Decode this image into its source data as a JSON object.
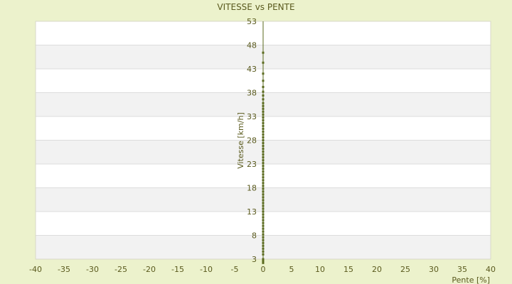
{
  "chart_data": {
    "type": "scatter",
    "title": "VITESSE vs PENTE",
    "xlabel": "Pente [%]",
    "ylabel": "Vitesse [km/h]",
    "xlim": [
      -40,
      40
    ],
    "ylim": [
      3,
      53
    ],
    "x_ticks": [
      -40,
      -35,
      -30,
      -25,
      -20,
      -15,
      -10,
      -5,
      0,
      5,
      10,
      15,
      20,
      25,
      30,
      35,
      40
    ],
    "y_ticks": [
      3,
      8,
      13,
      18,
      23,
      28,
      33,
      38,
      43,
      48,
      53
    ],
    "grid": "horizontal-bands",
    "legend": "none",
    "colors": {
      "background": "#ecf2cc",
      "plot_band_light": "#ffffff",
      "plot_band_dark": "#f2f2f2",
      "points": "#5a6a1e",
      "text": "#5a5a1e"
    },
    "points": [
      {
        "x": 0,
        "y": 2.2
      },
      {
        "x": 0,
        "y": 2.6
      },
      {
        "x": 0,
        "y": 3.0
      },
      {
        "x": 0,
        "y": 4.0
      },
      {
        "x": 0,
        "y": 4.6
      },
      {
        "x": 0,
        "y": 5.2
      },
      {
        "x": 0,
        "y": 5.8
      },
      {
        "x": 0,
        "y": 6.4
      },
      {
        "x": 0,
        "y": 7.0
      },
      {
        "x": 0,
        "y": 7.6
      },
      {
        "x": 0,
        "y": 8.2
      },
      {
        "x": 0,
        "y": 8.8
      },
      {
        "x": 0,
        "y": 9.4
      },
      {
        "x": 0,
        "y": 10.0
      },
      {
        "x": 0,
        "y": 10.6
      },
      {
        "x": 0,
        "y": 11.2
      },
      {
        "x": 0,
        "y": 11.8
      },
      {
        "x": 0,
        "y": 12.4
      },
      {
        "x": 0,
        "y": 13.0
      },
      {
        "x": 0,
        "y": 13.6
      },
      {
        "x": 0,
        "y": 14.2
      },
      {
        "x": 0,
        "y": 14.8
      },
      {
        "x": 0,
        "y": 15.4
      },
      {
        "x": 0,
        "y": 16.0
      },
      {
        "x": 0,
        "y": 16.6
      },
      {
        "x": 0,
        "y": 17.2
      },
      {
        "x": 0,
        "y": 17.8
      },
      {
        "x": 0,
        "y": 18.4
      },
      {
        "x": 0,
        "y": 19.0
      },
      {
        "x": 0,
        "y": 19.6
      },
      {
        "x": 0,
        "y": 20.2
      },
      {
        "x": 0,
        "y": 20.8
      },
      {
        "x": 0,
        "y": 21.4
      },
      {
        "x": 0,
        "y": 22.0
      },
      {
        "x": 0,
        "y": 22.6
      },
      {
        "x": 0,
        "y": 23.2
      },
      {
        "x": 0,
        "y": 23.8
      },
      {
        "x": 0,
        "y": 24.4
      },
      {
        "x": 0,
        "y": 25.0
      },
      {
        "x": 0,
        "y": 25.6
      },
      {
        "x": 0,
        "y": 26.2
      },
      {
        "x": 0,
        "y": 26.8
      },
      {
        "x": 0,
        "y": 27.4
      },
      {
        "x": 0,
        "y": 28.0
      },
      {
        "x": 0,
        "y": 28.6
      },
      {
        "x": 0,
        "y": 29.2
      },
      {
        "x": 0,
        "y": 29.8
      },
      {
        "x": 0,
        "y": 30.4
      },
      {
        "x": 0,
        "y": 31.0
      },
      {
        "x": 0,
        "y": 31.6
      },
      {
        "x": 0,
        "y": 32.2
      },
      {
        "x": 0,
        "y": 32.8
      },
      {
        "x": 0,
        "y": 33.4
      },
      {
        "x": 0,
        "y": 34.0
      },
      {
        "x": 0,
        "y": 34.6
      },
      {
        "x": 0,
        "y": 35.2
      },
      {
        "x": 0,
        "y": 35.8
      },
      {
        "x": 0,
        "y": 36.6
      },
      {
        "x": 0,
        "y": 37.4
      },
      {
        "x": 0,
        "y": 38.2
      },
      {
        "x": 0,
        "y": 39.2
      },
      {
        "x": 0,
        "y": 40.5
      },
      {
        "x": 0,
        "y": 42.0
      },
      {
        "x": 0,
        "y": 44.3
      },
      {
        "x": 0,
        "y": 46.4
      }
    ]
  }
}
